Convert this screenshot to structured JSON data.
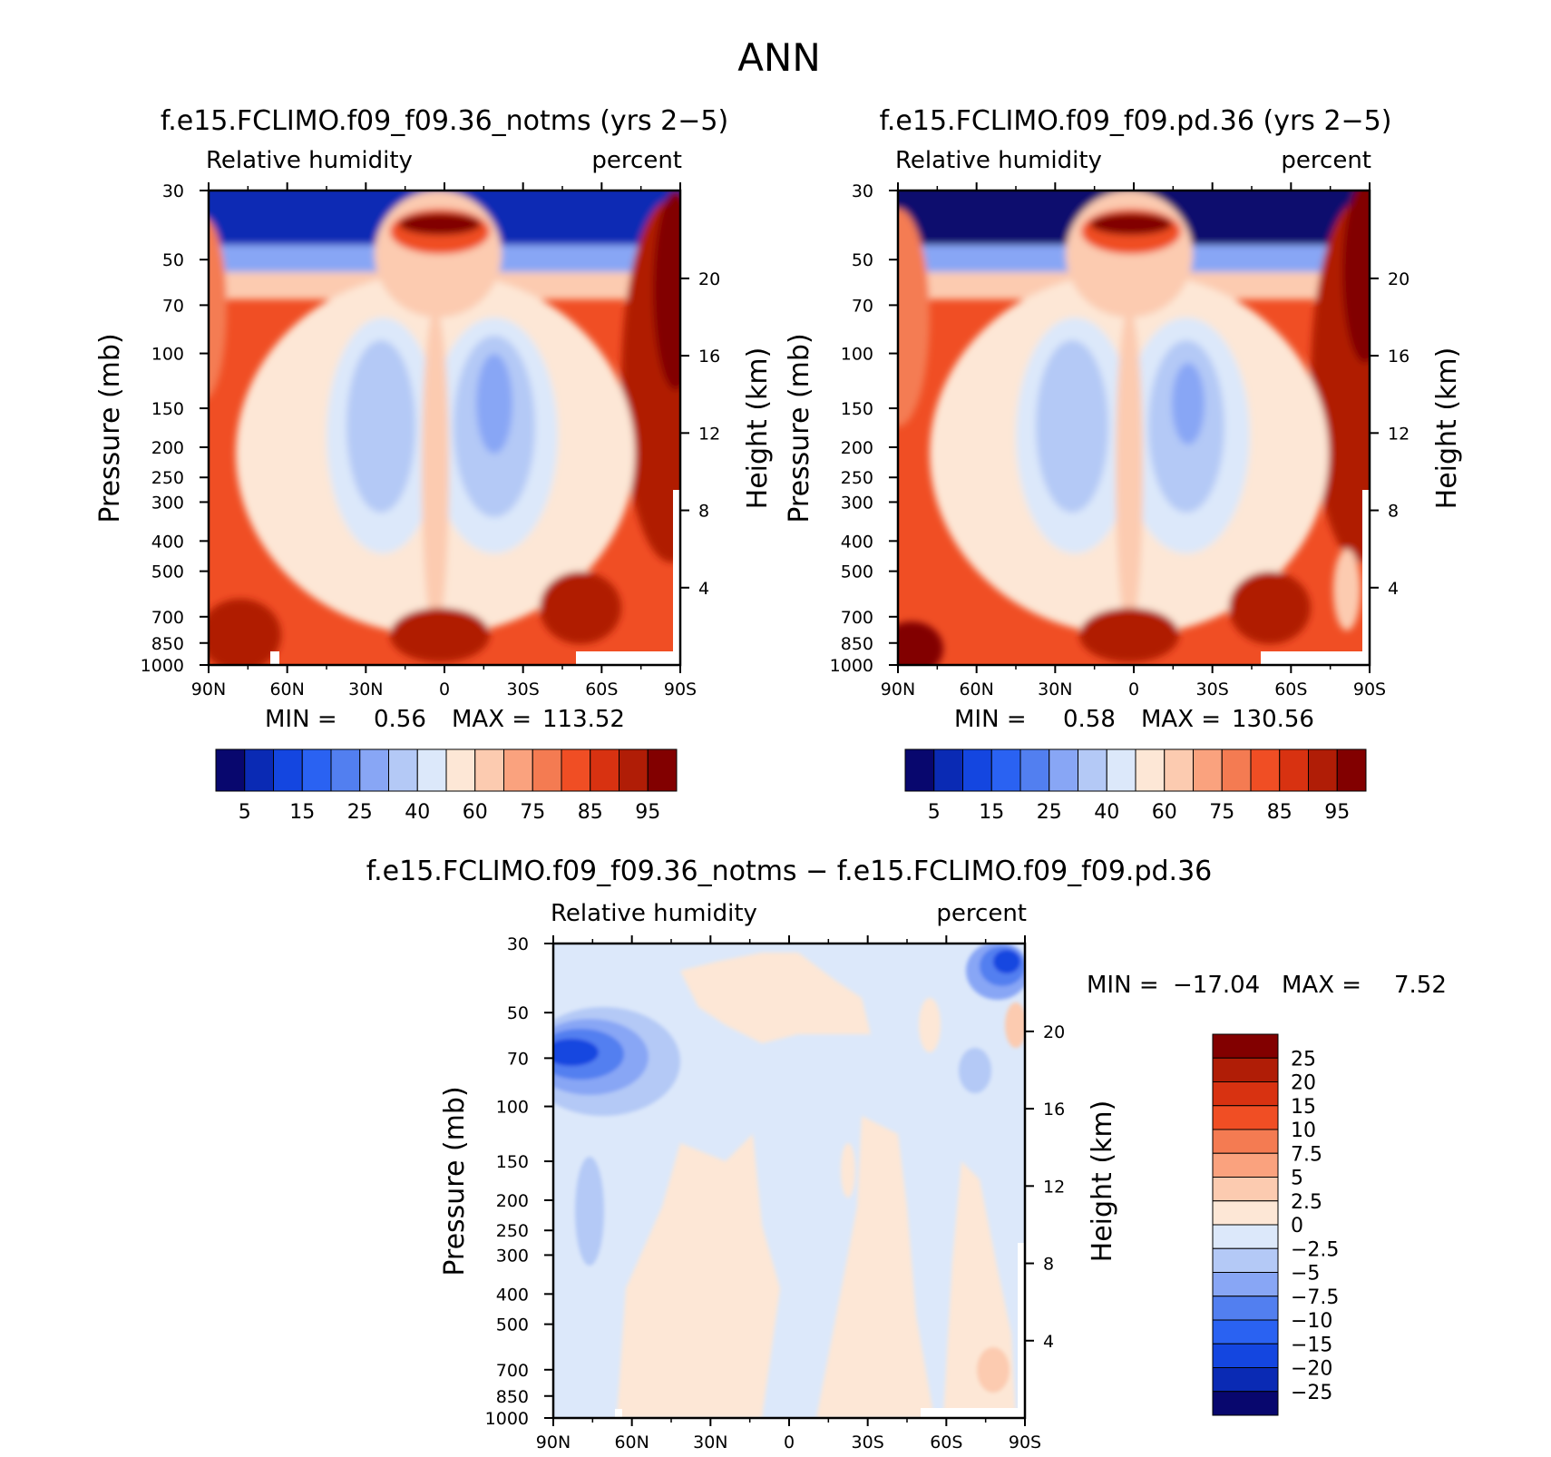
{
  "figure_title": "ANN",
  "colors": {
    "abs_palette": [
      "#08076e",
      "#0a2ab4",
      "#1446e0",
      "#2a62f2",
      "#527ff0",
      "#88a6f5",
      "#b4c9f6",
      "#dce8fa",
      "#fde7d6",
      "#fccbb0",
      "#faa27e",
      "#f47b52",
      "#f04e24",
      "#d83211",
      "#b01d06",
      "#820000"
    ],
    "diff_palette": [
      "#08076e",
      "#0a2ab4",
      "#1446e0",
      "#2a62f2",
      "#527ff0",
      "#88a6f5",
      "#b4c9f6",
      "#dce8fa",
      "#fde7d6",
      "#fccbb0",
      "#faa27e",
      "#f47b52",
      "#f04e24",
      "#d83211",
      "#b01d06",
      "#820000"
    ]
  },
  "chart_data": [
    {
      "type": "heatmap",
      "id": "top-left",
      "title": "f.e15.FCLIMO.f09_f09.36_notms (yrs 2−5)",
      "left_label": "Relative  humidity",
      "right_label": "percent",
      "ylabel": "Pressure  (mb)",
      "ylabel_right": "Height  (km)",
      "x_ticks": [
        "90N",
        "60N",
        "30N",
        "0",
        "30S",
        "60S",
        "90S"
      ],
      "y_ticks": [
        "30",
        "50",
        "70",
        "100",
        "150",
        "200",
        "250",
        "300",
        "400",
        "500",
        "700",
        "850",
        "1000"
      ],
      "height_ticks": [
        "20",
        "16",
        "12",
        "8",
        "4"
      ],
      "min_label": "MIN  =",
      "min_value": "0.56",
      "max_label": "MAX  =",
      "max_value": "113.52",
      "colorbar_labels": [
        "5",
        "15",
        "25",
        "40",
        "60",
        "75",
        "85",
        "95"
      ]
    },
    {
      "type": "heatmap",
      "id": "top-right",
      "title": "f.e15.FCLIMO.f09_f09.pd.36 (yrs 2−5)",
      "left_label": "Relative  humidity",
      "right_label": "percent",
      "ylabel": "Pressure  (mb)",
      "ylabel_right": "Height  (km)",
      "x_ticks": [
        "90N",
        "60N",
        "30N",
        "0",
        "30S",
        "60S",
        "90S"
      ],
      "y_ticks": [
        "30",
        "50",
        "70",
        "100",
        "150",
        "200",
        "250",
        "300",
        "400",
        "500",
        "700",
        "850",
        "1000"
      ],
      "height_ticks": [
        "20",
        "16",
        "12",
        "8",
        "4"
      ],
      "min_label": "MIN  =",
      "min_value": "0.58",
      "max_label": "MAX  =",
      "max_value": "130.56",
      "colorbar_labels": [
        "5",
        "15",
        "25",
        "40",
        "60",
        "75",
        "85",
        "95"
      ]
    },
    {
      "type": "heatmap",
      "id": "bottom-diff",
      "title": "f.e15.FCLIMO.f09_f09.36_notms − f.e15.FCLIMO.f09_f09.pd.36",
      "left_label": "Relative  humidity",
      "right_label": "percent",
      "ylabel": "Pressure  (mb)",
      "ylabel_right": "Height  (km)",
      "x_ticks": [
        "90N",
        "60N",
        "30N",
        "0",
        "30S",
        "60S",
        "90S"
      ],
      "y_ticks": [
        "30",
        "50",
        "70",
        "100",
        "150",
        "200",
        "250",
        "300",
        "400",
        "500",
        "700",
        "850",
        "1000"
      ],
      "height_ticks": [
        "20",
        "16",
        "12",
        "8",
        "4"
      ],
      "min_label": "MIN  =",
      "min_value": "−17.04",
      "max_label": "MAX  =",
      "max_value": "7.52",
      "colorbar_labels": [
        "25",
        "20",
        "15",
        "10",
        "7.5",
        "5",
        "2.5",
        "0",
        "−2.5",
        "−5",
        "−7.5",
        "−10",
        "−15",
        "−20",
        "−25"
      ]
    }
  ]
}
